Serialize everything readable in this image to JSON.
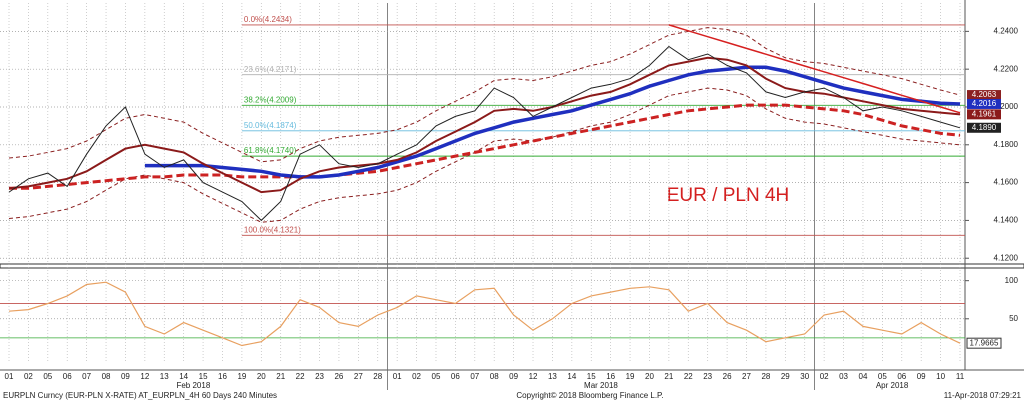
{
  "chart_data": [
    {
      "type": "line",
      "annotation": "EUR / PLN 4H",
      "categories": [
        "01",
        "02",
        "05",
        "06",
        "07",
        "08",
        "09",
        "12",
        "13",
        "14",
        "15",
        "16",
        "19",
        "20",
        "21",
        "22",
        "23",
        "26",
        "27",
        "28",
        "01",
        "02",
        "05",
        "06",
        "07",
        "08",
        "09",
        "12",
        "13",
        "14",
        "15",
        "16",
        "19",
        "20",
        "21",
        "22",
        "23",
        "26",
        "27",
        "28",
        "29",
        "30",
        "02",
        "03",
        "04",
        "05",
        "06",
        "09",
        "10",
        "11"
      ],
      "x_groups": [
        "Feb 2018",
        "Mar 2018",
        "Apr 2018"
      ],
      "ylim": [
        4.118,
        4.255
      ],
      "yticks": [
        {
          "value": 4.12,
          "label": "4.1200"
        },
        {
          "value": 4.14,
          "label": "4.1400"
        },
        {
          "value": 4.16,
          "label": "4.1600"
        },
        {
          "value": 4.18,
          "label": "4.1800"
        },
        {
          "value": 4.2,
          "label": "4.2000"
        },
        {
          "value": 4.22,
          "label": "4.2200"
        },
        {
          "value": 4.24,
          "label": "4.2400"
        }
      ],
      "grid": true,
      "fib_levels": [
        {
          "value": 4.2434,
          "label": "0.0%(4.2434)",
          "color": "#c0504d"
        },
        {
          "value": 4.2171,
          "label": "23.6%(4.2171)",
          "color": "#b0b0b0"
        },
        {
          "value": 4.2009,
          "label": "38.2%(4.2009)",
          "color": "#33aa33"
        },
        {
          "value": 4.1874,
          "label": "50.0%(4.1874)",
          "color": "#66bbdd"
        },
        {
          "value": 4.174,
          "label": "61.8%(4.1740)",
          "color": "#33aa33"
        },
        {
          "value": 4.1321,
          "label": "100.0%(4.1321)",
          "color": "#c0504d"
        }
      ],
      "series": [
        {
          "color": "#8b2020",
          "dash": "4,3",
          "width": 1,
          "values": [
            4.173,
            4.174,
            4.176,
            4.178,
            4.182,
            4.188,
            4.194,
            4.196,
            4.194,
            4.192,
            4.186,
            4.181,
            4.176,
            4.171,
            4.172,
            4.178,
            4.182,
            4.184,
            4.185,
            4.186,
            4.188,
            4.192,
            4.198,
            4.203,
            4.208,
            4.214,
            4.215,
            4.214,
            4.216,
            4.219,
            4.222,
            4.224,
            4.228,
            4.233,
            4.238,
            4.24,
            4.242,
            4.241,
            4.238,
            4.231,
            4.226,
            4.224,
            4.223,
            4.221,
            4.219,
            4.217,
            4.215,
            4.212,
            4.209,
            4.2063
          ],
          "last_label": 4.2063
        },
        {
          "color": "#8b2020",
          "dash": "4,3",
          "width": 1,
          "values": [
            4.141,
            4.142,
            4.144,
            4.146,
            4.15,
            4.156,
            4.162,
            4.164,
            4.162,
            4.16,
            4.154,
            4.149,
            4.144,
            4.139,
            4.14,
            4.146,
            4.15,
            4.152,
            4.153,
            4.154,
            4.156,
            4.16,
            4.166,
            4.171,
            4.176,
            4.182,
            4.183,
            4.182,
            4.184,
            4.187,
            4.19,
            4.192,
            4.196,
            4.201,
            4.206,
            4.208,
            4.21,
            4.209,
            4.206,
            4.199,
            4.194,
            4.192,
            4.191,
            4.189,
            4.187,
            4.185,
            4.183,
            4.182,
            4.181,
            4.18
          ]
        },
        {
          "color": "#cc2222",
          "dash": "8,4",
          "width": 3,
          "values": [
            4.157,
            4.157,
            4.158,
            4.159,
            4.16,
            4.161,
            4.162,
            4.163,
            4.163,
            4.164,
            4.164,
            4.164,
            4.163,
            4.163,
            4.163,
            4.163,
            4.163,
            4.164,
            4.165,
            4.166,
            4.168,
            4.17,
            4.172,
            4.174,
            4.176,
            4.178,
            4.18,
            4.182,
            4.184,
            4.186,
            4.188,
            4.19,
            4.192,
            4.194,
            4.196,
            4.198,
            4.199,
            4.2,
            4.201,
            4.201,
            4.201,
            4.2,
            4.199,
            4.198,
            4.196,
            4.193,
            4.19,
            4.188,
            4.186,
            4.185
          ]
        },
        {
          "color": "#1f2fbf",
          "width": 3.5,
          "values": [
            null,
            null,
            null,
            null,
            null,
            null,
            null,
            4.169,
            4.169,
            4.169,
            4.169,
            4.168,
            4.167,
            4.166,
            4.164,
            4.163,
            4.163,
            4.164,
            4.166,
            4.168,
            4.171,
            4.174,
            4.178,
            4.182,
            4.186,
            4.189,
            4.192,
            4.194,
            4.196,
            4.198,
            4.201,
            4.204,
            4.207,
            4.211,
            4.214,
            4.217,
            4.219,
            4.22,
            4.221,
            4.221,
            4.219,
            4.216,
            4.213,
            4.21,
            4.208,
            4.206,
            4.204,
            4.203,
            4.202,
            4.2016
          ],
          "last_label": 4.2016
        },
        {
          "color": "#8b1a1a",
          "width": 2,
          "values": [
            4.157,
            4.158,
            4.16,
            4.162,
            4.166,
            4.172,
            4.178,
            4.18,
            4.178,
            4.176,
            4.17,
            4.165,
            4.16,
            4.155,
            4.156,
            4.162,
            4.166,
            4.168,
            4.169,
            4.17,
            4.172,
            4.176,
            4.182,
            4.187,
            4.192,
            4.198,
            4.199,
            4.198,
            4.2,
            4.203,
            4.206,
            4.208,
            4.212,
            4.217,
            4.222,
            4.224,
            4.226,
            4.225,
            4.222,
            4.215,
            4.21,
            4.208,
            4.207,
            4.205,
            4.203,
            4.201,
            4.199,
            4.198,
            4.197,
            4.1961
          ],
          "last_label": 4.1961
        },
        {
          "color": "#d62020",
          "width": 1.5,
          "values": [
            null,
            null,
            null,
            null,
            null,
            null,
            null,
            null,
            null,
            null,
            null,
            null,
            null,
            null,
            null,
            null,
            null,
            null,
            null,
            null,
            null,
            null,
            null,
            null,
            null,
            null,
            null,
            null,
            null,
            null,
            null,
            null,
            null,
            null,
            4.2434,
            4.2403,
            4.2372,
            4.2341,
            4.231,
            4.2279,
            4.2248,
            4.2217,
            4.2186,
            4.2155,
            4.2124,
            4.2093,
            4.2062,
            4.2031,
            4.2,
            4.1969
          ]
        },
        {
          "color": "#222222",
          "width": 1,
          "values": [
            4.155,
            4.162,
            4.165,
            4.158,
            4.175,
            4.19,
            4.2,
            4.175,
            4.168,
            4.172,
            4.16,
            4.155,
            4.15,
            4.14,
            4.15,
            4.175,
            4.18,
            4.17,
            4.168,
            4.17,
            4.175,
            4.18,
            4.19,
            4.195,
            4.198,
            4.21,
            4.205,
            4.195,
            4.2,
            4.205,
            4.21,
            4.212,
            4.215,
            4.222,
            4.232,
            4.225,
            4.228,
            4.222,
            4.218,
            4.208,
            4.205,
            4.208,
            4.21,
            4.205,
            4.198,
            4.2,
            4.198,
            4.195,
            4.192,
            4.189
          ],
          "last_label": "4.1890"
        }
      ]
    },
    {
      "type": "line",
      "ylim": [
        -8,
        114
      ],
      "yticks": [
        50,
        100
      ],
      "ref_lines": [
        {
          "value": 70,
          "color": "#c0504d"
        },
        {
          "value": 25,
          "color": "#33aa33"
        }
      ],
      "series": [
        {
          "color": "#e8a060",
          "width": 1.2,
          "values": [
            60,
            62,
            70,
            80,
            95,
            98,
            85,
            40,
            30,
            45,
            35,
            25,
            15,
            20,
            40,
            75,
            65,
            45,
            40,
            55,
            65,
            80,
            75,
            70,
            88,
            90,
            55,
            35,
            50,
            70,
            80,
            85,
            90,
            92,
            88,
            60,
            70,
            45,
            35,
            20,
            25,
            30,
            55,
            60,
            40,
            35,
            30,
            45,
            30,
            18
          ],
          "last_label": 17.9665
        }
      ]
    }
  ],
  "footer": {
    "left": "EURPLN Curncy (EUR-PLN X-RATE) AT_EURPLN_4H 60 Days 240 Minutes",
    "center": "Copyright© 2018 Bloomberg Finance L.P.",
    "right": "11-Apr-2018 07:29:21"
  }
}
